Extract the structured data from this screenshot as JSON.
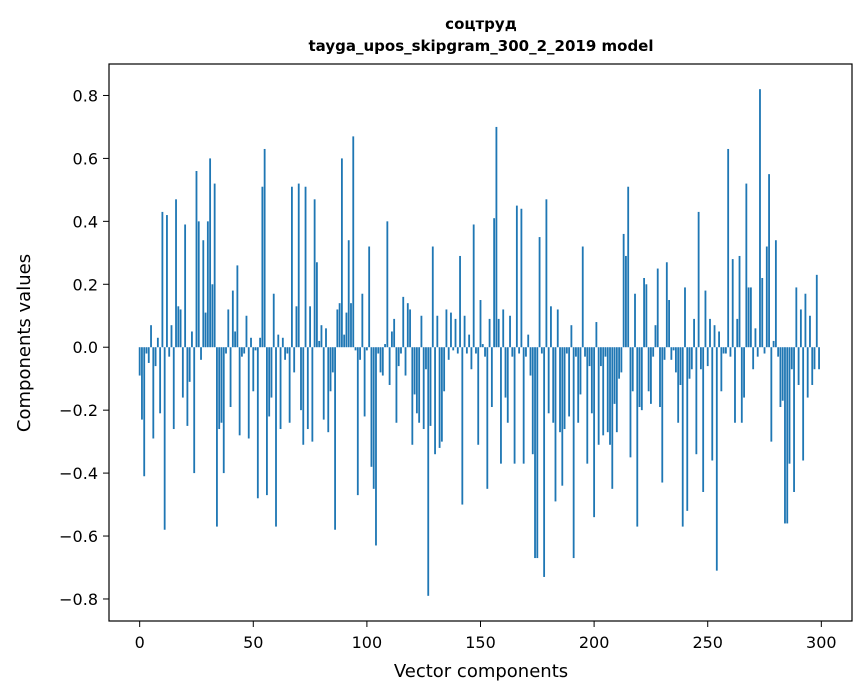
{
  "chart_data": {
    "type": "bar",
    "title": "соцтруд",
    "subtitle": "tayga_upos_skipgram_300_2_2019 model",
    "xlabel": "Vector components",
    "ylabel": "Components values",
    "xlim": [
      -13.5,
      313.5
    ],
    "ylim": [
      -0.87,
      0.9
    ],
    "x_ticks": [
      0,
      50,
      100,
      150,
      200,
      250,
      300
    ],
    "x_tick_labels": [
      "0",
      "50",
      "100",
      "150",
      "200",
      "250",
      "300"
    ],
    "y_ticks": [
      -0.8,
      -0.6,
      -0.4,
      -0.2,
      0.0,
      0.2,
      0.4,
      0.6,
      0.8
    ],
    "y_tick_labels": [
      "−0.8",
      "−0.6",
      "−0.4",
      "−0.2",
      "0.0",
      "0.2",
      "0.4",
      "0.6",
      "0.8"
    ],
    "bar_color": "#1f77b4",
    "grid": false,
    "legend": "none",
    "x": "0..299",
    "values": [
      -0.09,
      -0.23,
      -0.41,
      -0.02,
      -0.05,
      0.07,
      -0.29,
      -0.06,
      0.03,
      -0.21,
      0.43,
      -0.58,
      0.42,
      -0.03,
      0.07,
      -0.26,
      0.47,
      0.13,
      0.12,
      -0.16,
      0.39,
      -0.25,
      -0.11,
      0.05,
      -0.4,
      0.56,
      0.4,
      -0.04,
      0.34,
      0.11,
      0.4,
      0.6,
      0.2,
      0.52,
      -0.57,
      -0.26,
      -0.24,
      -0.4,
      -0.02,
      0.12,
      -0.19,
      0.18,
      0.05,
      0.26,
      -0.28,
      -0.03,
      -0.02,
      0.1,
      -0.29,
      0.03,
      -0.14,
      -0.01,
      -0.48,
      0.03,
      0.51,
      0.63,
      -0.47,
      -0.22,
      -0.16,
      0.17,
      -0.57,
      0.04,
      -0.26,
      0.03,
      -0.04,
      -0.02,
      -0.24,
      0.51,
      -0.08,
      0.13,
      0.52,
      -0.2,
      -0.31,
      0.51,
      -0.26,
      0.13,
      -0.3,
      0.47,
      0.27,
      0.02,
      0.07,
      -0.23,
      0.06,
      -0.27,
      -0.14,
      -0.08,
      -0.58,
      0.12,
      0.14,
      0.6,
      0.04,
      0.11,
      0.34,
      0.14,
      0.67,
      -0.01,
      -0.47,
      -0.04,
      0.17,
      -0.22,
      -0.01,
      0.32,
      -0.38,
      -0.45,
      -0.63,
      -0.02,
      -0.08,
      -0.09,
      0.01,
      0.4,
      -0.12,
      0.05,
      0.09,
      -0.24,
      -0.06,
      -0.02,
      0.16,
      -0.09,
      0.14,
      0.12,
      -0.31,
      -0.15,
      -0.21,
      -0.24,
      0.1,
      -0.26,
      -0.07,
      -0.79,
      -0.25,
      0.32,
      -0.34,
      0.1,
      -0.32,
      -0.3,
      -0.14,
      0.12,
      -0.04,
      0.11,
      -0.01,
      0.09,
      -0.02,
      0.29,
      -0.5,
      0.1,
      -0.02,
      0.04,
      -0.07,
      0.39,
      -0.02,
      -0.31,
      0.15,
      0.01,
      -0.03,
      -0.45,
      0.09,
      -0.19,
      0.41,
      0.7,
      0.09,
      -0.37,
      0.12,
      -0.16,
      -0.24,
      0.1,
      -0.03,
      -0.37,
      0.45,
      -0.02,
      0.44,
      -0.37,
      -0.03,
      0.04,
      -0.09,
      -0.34,
      -0.67,
      -0.67,
      0.35,
      -0.02,
      -0.73,
      0.47,
      -0.21,
      0.13,
      -0.24,
      -0.49,
      0.12,
      -0.27,
      -0.44,
      -0.26,
      -0.02,
      -0.22,
      0.07,
      -0.67,
      -0.03,
      -0.24,
      -0.15,
      0.32,
      -0.03,
      -0.37,
      -0.06,
      -0.21,
      -0.54,
      0.08,
      -0.31,
      -0.06,
      -0.28,
      -0.03,
      -0.27,
      -0.31,
      -0.45,
      -0.18,
      -0.27,
      -0.1,
      -0.08,
      0.36,
      0.29,
      0.51,
      -0.35,
      -0.14,
      0.17,
      -0.57,
      -0.19,
      -0.2,
      0.22,
      0.2,
      -0.14,
      -0.18,
      -0.03,
      0.07,
      0.25,
      -0.19,
      -0.43,
      -0.04,
      0.27,
      0.15,
      -0.04,
      -0.01,
      -0.08,
      -0.24,
      -0.12,
      -0.57,
      0.19,
      -0.52,
      -0.1,
      -0.07,
      0.09,
      -0.34,
      0.43,
      -0.07,
      -0.46,
      0.18,
      -0.06,
      0.09,
      -0.36,
      0.07,
      -0.71,
      0.05,
      -0.14,
      -0.02,
      -0.02,
      0.63,
      -0.03,
      0.28,
      -0.24,
      0.09,
      0.29,
      -0.24,
      -0.16,
      0.52,
      0.19,
      0.19,
      -0.07,
      0.06,
      -0.03,
      0.82,
      0.22,
      -0.02,
      0.32,
      0.55,
      -0.3,
      0.02,
      0.34,
      -0.03,
      -0.19,
      -0.17,
      -0.56,
      -0.56,
      -0.37,
      -0.07,
      -0.46,
      0.19,
      -0.12,
      0.12,
      -0.36,
      0.17,
      -0.16,
      0.1,
      -0.12,
      -0.07,
      0.23,
      -0.07
    ]
  }
}
